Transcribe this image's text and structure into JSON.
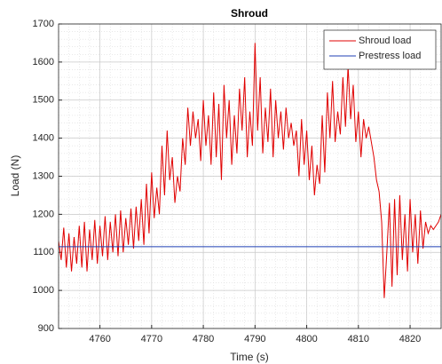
{
  "chart_data": {
    "type": "line",
    "title": "Shroud",
    "xlabel": "Time (s)",
    "ylabel": "Load (N)",
    "xlim": [
      4752,
      4826
    ],
    "ylim": [
      900,
      1700
    ],
    "xticks": [
      4760,
      4770,
      4780,
      4790,
      4800,
      4810,
      4820
    ],
    "yticks": [
      900,
      1000,
      1100,
      1200,
      1300,
      1400,
      1500,
      1600,
      1700
    ],
    "grid": true,
    "minor_grid": true,
    "legend": "upper right",
    "series": [
      {
        "name": "Shroud load",
        "color": "#e00000",
        "x": [
          4752,
          4752.5,
          4753,
          4753.5,
          4754,
          4754.5,
          4755,
          4755.5,
          4756,
          4756.5,
          4757,
          4757.5,
          4758,
          4758.5,
          4759,
          4759.5,
          4760,
          4760.5,
          4761,
          4761.5,
          4762,
          4762.5,
          4763,
          4763.5,
          4764,
          4764.5,
          4765,
          4765.5,
          4766,
          4766.5,
          4767,
          4767.5,
          4768,
          4768.5,
          4769,
          4769.5,
          4770,
          4770.5,
          4771,
          4771.5,
          4772,
          4772.5,
          4773,
          4773.5,
          4774,
          4774.5,
          4775,
          4775.5,
          4776,
          4776.5,
          4777,
          4777.5,
          4778,
          4778.5,
          4779,
          4779.5,
          4780,
          4780.5,
          4781,
          4781.5,
          4782,
          4782.5,
          4783,
          4783.5,
          4784,
          4784.5,
          4785,
          4785.5,
          4786,
          4786.5,
          4787,
          4787.5,
          4788,
          4788.5,
          4789,
          4789.5,
          4790,
          4790.5,
          4791,
          4791.5,
          4792,
          4792.5,
          4793,
          4793.5,
          4794,
          4794.5,
          4795,
          4795.5,
          4796,
          4796.5,
          4797,
          4797.5,
          4798,
          4798.5,
          4799,
          4799.5,
          4800,
          4800.5,
          4801,
          4801.5,
          4802,
          4802.5,
          4803,
          4803.5,
          4804,
          4804.5,
          4805,
          4805.5,
          4806,
          4806.5,
          4807,
          4807.5,
          4808,
          4808.5,
          4809,
          4809.5,
          4810,
          4810.5,
          4811,
          4811.5,
          4812,
          4812.5,
          4813,
          4813.5,
          4814,
          4814.5,
          4815,
          4815.5,
          4816,
          4816.5,
          4817,
          4817.5,
          4818,
          4818.5,
          4819,
          4819.5,
          4820,
          4820.5,
          4821,
          4821.5,
          4822,
          4822.5,
          4823,
          4823.5,
          4824,
          4824.5,
          4825,
          4825.5,
          4826
        ],
        "values": [
          1130,
          1080,
          1165,
          1060,
          1150,
          1050,
          1140,
          1070,
          1170,
          1060,
          1180,
          1050,
          1160,
          1080,
          1185,
          1070,
          1170,
          1090,
          1195,
          1080,
          1180,
          1100,
          1200,
          1090,
          1210,
          1100,
          1190,
          1120,
          1215,
          1110,
          1220,
          1130,
          1240,
          1120,
          1280,
          1150,
          1310,
          1190,
          1270,
          1200,
          1380,
          1250,
          1420,
          1290,
          1350,
          1230,
          1300,
          1260,
          1400,
          1330,
          1480,
          1380,
          1470,
          1400,
          1450,
          1340,
          1500,
          1380,
          1460,
          1330,
          1520,
          1350,
          1490,
          1290,
          1540,
          1400,
          1500,
          1330,
          1460,
          1360,
          1530,
          1420,
          1560,
          1350,
          1470,
          1380,
          1650,
          1420,
          1560,
          1360,
          1480,
          1390,
          1530,
          1350,
          1500,
          1400,
          1470,
          1370,
          1480,
          1400,
          1440,
          1380,
          1420,
          1300,
          1450,
          1330,
          1420,
          1290,
          1380,
          1250,
          1330,
          1280,
          1460,
          1310,
          1520,
          1400,
          1550,
          1390,
          1470,
          1410,
          1560,
          1430,
          1590,
          1450,
          1540,
          1390,
          1470,
          1350,
          1450,
          1400,
          1430,
          1390,
          1350,
          1290,
          1260,
          1180,
          980,
          1100,
          1230,
          1010,
          1240,
          1040,
          1250,
          1080,
          1200,
          1050,
          1240,
          1100,
          1200,
          1070,
          1210,
          1110,
          1180,
          1150,
          1170,
          1160,
          1170,
          1180,
          1200
        ]
      },
      {
        "name": "Prestress load",
        "color": "#1f3fb4",
        "x": [
          4752,
          4826
        ],
        "values": [
          1115,
          1115
        ]
      }
    ]
  }
}
